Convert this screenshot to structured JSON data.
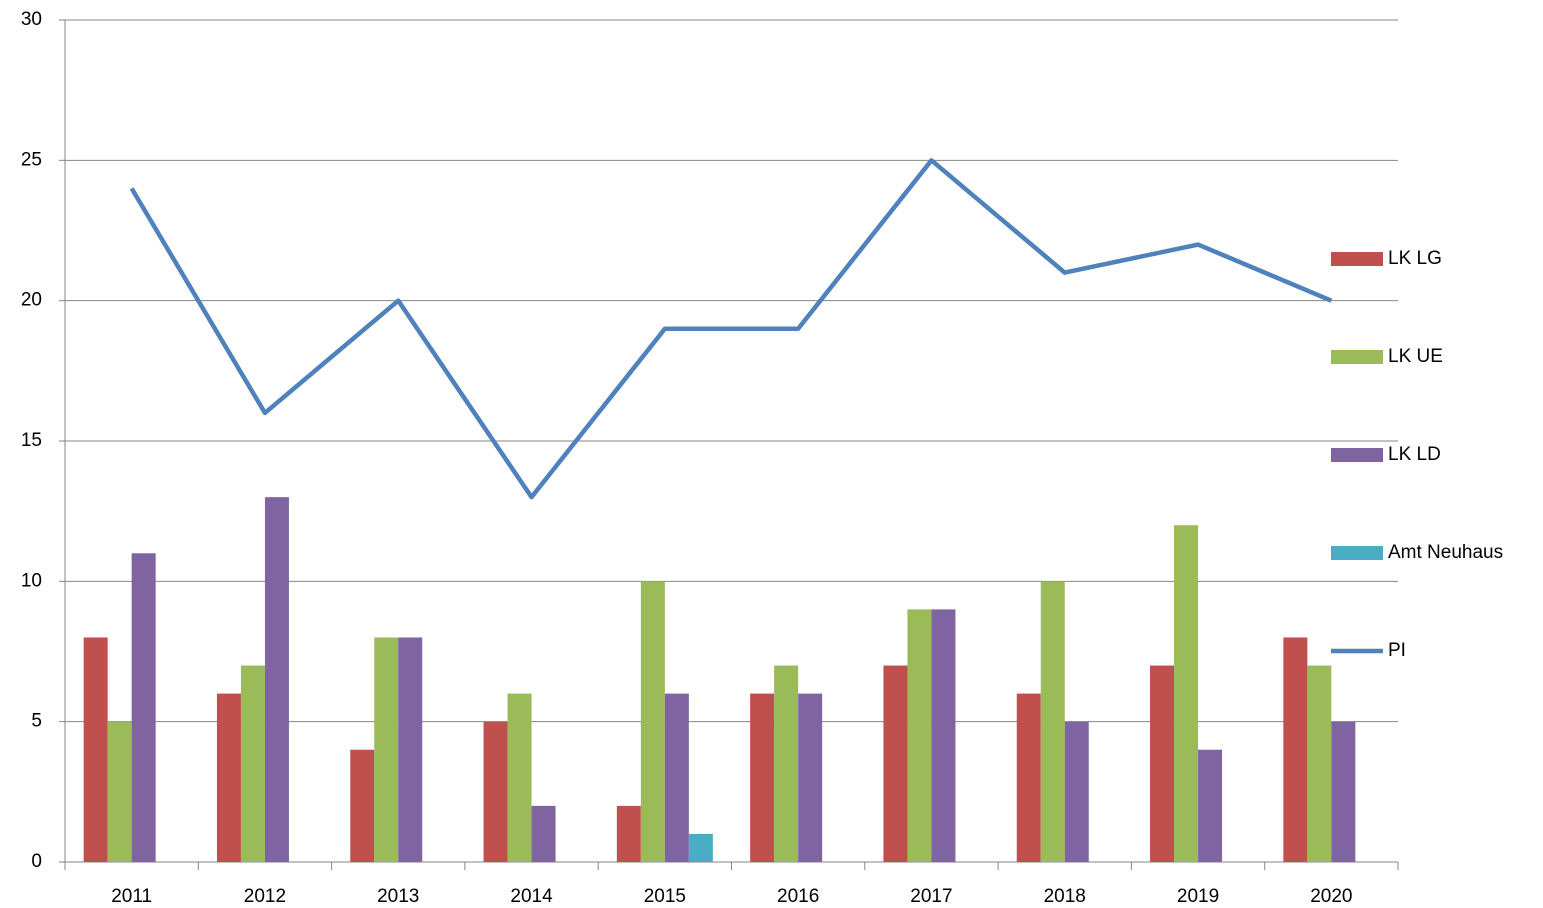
{
  "chart_data": {
    "type": "bar",
    "categories": [
      "2011",
      "2012",
      "2013",
      "2014",
      "2015",
      "2016",
      "2017",
      "2018",
      "2019",
      "2020"
    ],
    "series": [
      {
        "name": "LK LG",
        "color": "#c0504d",
        "values": [
          8,
          6,
          4,
          5,
          2,
          6,
          7,
          6,
          7,
          8
        ]
      },
      {
        "name": "LK UE",
        "color": "#9bbb59",
        "values": [
          5,
          7,
          8,
          6,
          10,
          7,
          9,
          10,
          12,
          7
        ]
      },
      {
        "name": "LK LD",
        "color": "#8064a2",
        "values": [
          11,
          13,
          8,
          2,
          6,
          6,
          9,
          5,
          4,
          5
        ]
      },
      {
        "name": "Amt Neuhaus",
        "color": "#4bacc6",
        "values": [
          null,
          null,
          null,
          null,
          1,
          null,
          null,
          null,
          null,
          null
        ]
      },
      {
        "name": "PI",
        "color": "#4f81bd",
        "type": "line",
        "values": [
          24,
          16,
          20,
          13,
          19,
          19,
          25,
          21,
          22,
          20
        ]
      }
    ],
    "ylim": [
      0,
      30
    ],
    "yticks": [
      0,
      5,
      10,
      15,
      20,
      25,
      30
    ],
    "grid": true,
    "legend": "right"
  }
}
